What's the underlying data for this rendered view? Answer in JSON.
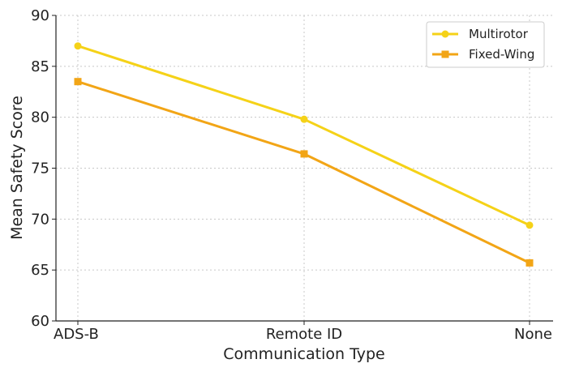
{
  "chart_data": {
    "type": "line",
    "categories": [
      "ADS-B",
      "Remote ID",
      "None"
    ],
    "xlabel": "Communication Type",
    "ylabel": "Mean Safety Score",
    "ylim": [
      60,
      90
    ],
    "yticks": [
      "60",
      "65",
      "70",
      "75",
      "80",
      "85",
      "90"
    ],
    "grid": true,
    "legend_position": "top-right",
    "series": [
      {
        "name": "Multirotor",
        "values": [
          87.0,
          79.8,
          69.4
        ],
        "color": "#F5D218",
        "marker": "circle"
      },
      {
        "name": "Fixed-Wing",
        "values": [
          83.5,
          76.4,
          65.7
        ],
        "color": "#F2A516",
        "marker": "square"
      }
    ]
  }
}
